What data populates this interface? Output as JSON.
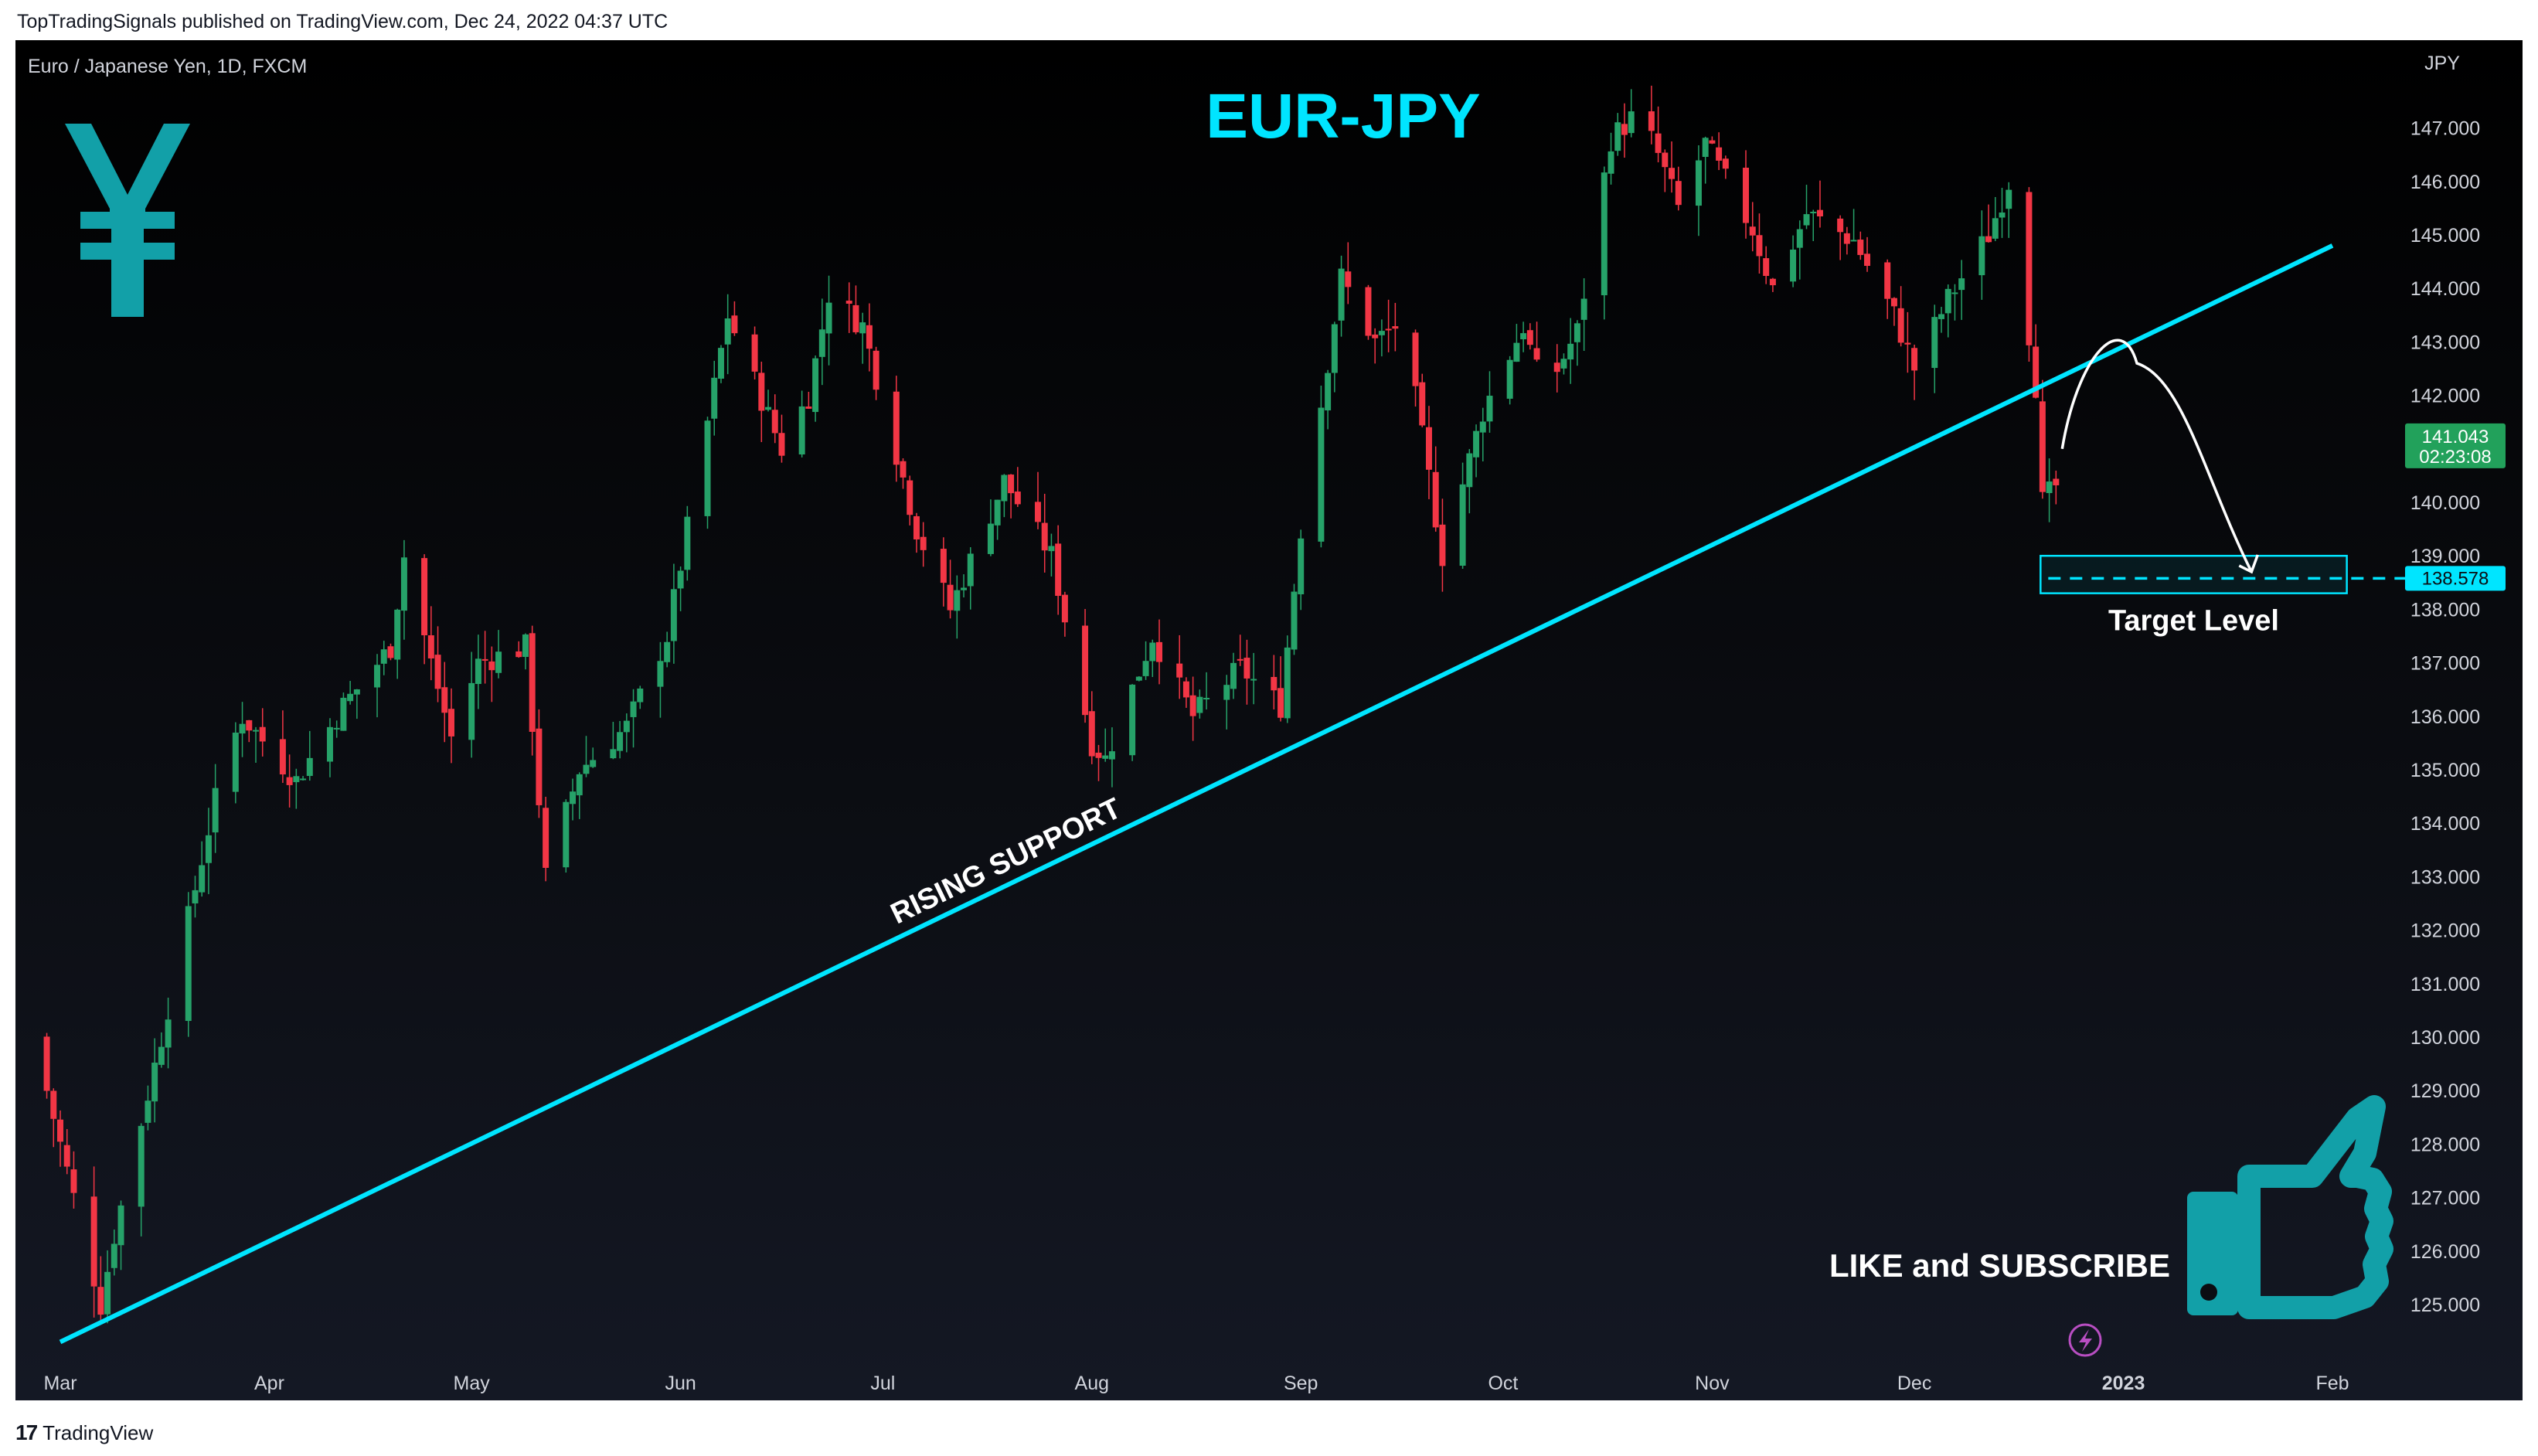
{
  "publisher_line": "TopTradingSignals published on TradingView.com, Dec 24, 2022 04:37 UTC",
  "footer_brand": "TradingView",
  "symbol_label": "Euro / Japanese Yen, 1D, FXCM",
  "currency_unit": "JPY",
  "price_badge": {
    "price": "141.043",
    "countdown": "02:23:08",
    "color": "#22a15b"
  },
  "target_badge": {
    "price": "138.578",
    "color": "#00e5ff"
  },
  "colors": {
    "up": "#26a269",
    "down": "#f23645",
    "accent": "#00e5ff",
    "icon": "#12a0a8"
  },
  "icons": {
    "yen": "yen-symbol-icon",
    "thumb": "thumbs-up-icon",
    "flash": "lightning-icon"
  },
  "chart_data": {
    "type": "candlestick",
    "title": "EUR-JPY",
    "timeframe": "1D",
    "y_axis": {
      "unit": "JPY",
      "range": [
        124.0,
        149.5
      ],
      "ticks": [
        "125.000",
        "126.000",
        "127.000",
        "128.000",
        "129.000",
        "130.000",
        "131.000",
        "132.000",
        "133.000",
        "134.000",
        "135.000",
        "136.000",
        "137.000",
        "138.000",
        "139.000",
        "140.000",
        "142.000",
        "143.000",
        "144.000",
        "145.000",
        "146.000",
        "147.000"
      ]
    },
    "x_axis": {
      "labels": [
        {
          "label": "Mar",
          "x": "2022-03-01"
        },
        {
          "label": "Apr",
          "x": "2022-04-01"
        },
        {
          "label": "May",
          "x": "2022-05-01"
        },
        {
          "label": "Jun",
          "x": "2022-06-01"
        },
        {
          "label": "Jul",
          "x": "2022-07-01"
        },
        {
          "label": "Aug",
          "x": "2022-08-01"
        },
        {
          "label": "Sep",
          "x": "2022-09-01"
        },
        {
          "label": "Oct",
          "x": "2022-10-01"
        },
        {
          "label": "Nov",
          "x": "2022-11-01"
        },
        {
          "label": "Dec",
          "x": "2022-12-01"
        },
        {
          "label": "2023",
          "x": "2023-01-01"
        },
        {
          "label": "Feb",
          "x": "2023-02-01"
        }
      ]
    },
    "price_anchors": [
      [
        "2022-02-25",
        130.0
      ],
      [
        "2022-03-02",
        127.5
      ],
      [
        "2022-03-07",
        125.0
      ],
      [
        "2022-03-09",
        126.3
      ],
      [
        "2022-03-16",
        130.0
      ],
      [
        "2022-03-25",
        135.0
      ],
      [
        "2022-03-28",
        136.0
      ],
      [
        "2022-04-05",
        134.8
      ],
      [
        "2022-04-12",
        136.2
      ],
      [
        "2022-04-19",
        137.3
      ],
      [
        "2022-04-21",
        139.0
      ],
      [
        "2022-04-25",
        137.0
      ],
      [
        "2022-04-28",
        135.6
      ],
      [
        "2022-05-02",
        137.0
      ],
      [
        "2022-05-09",
        137.3
      ],
      [
        "2022-05-12",
        133.0
      ],
      [
        "2022-05-17",
        135.0
      ],
      [
        "2022-05-24",
        135.8
      ],
      [
        "2022-05-30",
        137.5
      ],
      [
        "2022-06-08",
        143.5
      ],
      [
        "2022-06-16",
        141.0
      ],
      [
        "2022-06-20",
        142.0
      ],
      [
        "2022-06-23",
        143.9
      ],
      [
        "2022-06-28",
        143.3
      ],
      [
        "2022-07-06",
        139.5
      ],
      [
        "2022-07-11",
        138.0
      ],
      [
        "2022-07-19",
        140.4
      ],
      [
        "2022-07-26",
        139.0
      ],
      [
        "2022-08-01",
        135.5
      ],
      [
        "2022-08-03",
        135.2
      ],
      [
        "2022-08-10",
        137.5
      ],
      [
        "2022-08-16",
        136.0
      ],
      [
        "2022-08-23",
        136.9
      ],
      [
        "2022-08-29",
        136.2
      ],
      [
        "2022-09-01",
        139.5
      ],
      [
        "2022-09-07",
        144.2
      ],
      [
        "2022-09-12",
        143.0
      ],
      [
        "2022-09-16",
        143.4
      ],
      [
        "2022-09-22",
        139.0
      ],
      [
        "2022-09-28",
        141.7
      ],
      [
        "2022-10-04",
        143.3
      ],
      [
        "2022-10-07",
        142.0
      ],
      [
        "2022-10-12",
        143.2
      ],
      [
        "2022-10-17",
        146.8
      ],
      [
        "2022-10-21",
        147.3
      ],
      [
        "2022-10-24",
        146.5
      ],
      [
        "2022-10-27",
        145.5
      ],
      [
        "2022-10-31",
        146.7
      ],
      [
        "2022-11-07",
        145.1
      ],
      [
        "2022-11-10",
        144.0
      ],
      [
        "2022-11-15",
        145.4
      ],
      [
        "2022-11-22",
        144.9
      ],
      [
        "2022-11-28",
        143.5
      ],
      [
        "2022-12-01",
        142.5
      ],
      [
        "2022-12-06",
        143.8
      ],
      [
        "2022-12-12",
        145.0
      ],
      [
        "2022-12-15",
        146.0
      ],
      [
        "2022-12-19",
        142.2
      ],
      [
        "2022-12-20",
        140.0
      ],
      [
        "2022-12-22",
        140.3
      ],
      [
        "2022-12-23",
        141.043
      ]
    ],
    "annotations": {
      "rising_support": {
        "label": "RISING SUPPORT",
        "from": [
          "2022-03-01",
          124.3
        ],
        "to": [
          "2023-02-01",
          144.8
        ]
      },
      "target_level": {
        "label": "Target Level",
        "price": 138.578,
        "zone": [
          138.3,
          139.0
        ],
        "from": "2022-12-22",
        "to": "2023-02-06"
      },
      "projected_path": {
        "from": [
          "2022-12-22",
          141.0
        ],
        "peak": [
          "2023-01-03",
          142.6
        ],
        "to": [
          "2023-01-20",
          138.7
        ]
      }
    },
    "grid": false,
    "legend": "none"
  },
  "cta_text": "LIKE and SUBSCRIBE"
}
